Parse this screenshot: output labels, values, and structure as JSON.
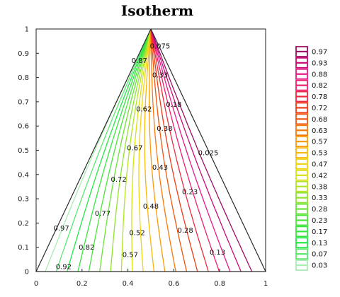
{
  "chart_data": {
    "type": "contour",
    "title": "Isotherm",
    "xlim": [
      0,
      1
    ],
    "ylim": [
      0,
      1
    ],
    "x_ticks": [
      "0",
      "0.2",
      "0.4",
      "0.6",
      "0.8",
      "1"
    ],
    "y_ticks": [
      "0",
      "0.1",
      "0.2",
      "0.3",
      "0.4",
      "0.5",
      "0.6",
      "0.7",
      "0.8",
      "0.9",
      "1"
    ],
    "domain_triangle": [
      [
        0,
        0
      ],
      [
        1,
        0
      ],
      [
        0.5,
        1
      ]
    ],
    "contour_levels": [
      "0.97",
      "0.93",
      "0.88",
      "0.82",
      "0.78",
      "0.72",
      "0.68",
      "0.63",
      "0.57",
      "0.53",
      "0.47",
      "0.42",
      "0.38",
      "0.33",
      "0.28",
      "0.23",
      "0.17",
      "0.13",
      "0.07",
      "0.03"
    ],
    "level_colors": [
      "#9e0e64",
      "#cc0a78",
      "#e8188a",
      "#f01e6e",
      "#f02a3e",
      "#f03a14",
      "#f2560c",
      "#f5780a",
      "#f89a0a",
      "#f8b80e",
      "#f2d214",
      "#d8e01a",
      "#b2e424",
      "#8ee42c",
      "#68e434",
      "#48e63a",
      "#34e640",
      "#22e846",
      "#5ae86e",
      "#a8eeb0"
    ],
    "contour_labels": [
      {
        "text": "0.075",
        "x": 0.54,
        "y": 0.93
      },
      {
        "text": "0.87",
        "x": 0.45,
        "y": 0.87
      },
      {
        "text": "0.33",
        "x": 0.54,
        "y": 0.81
      },
      {
        "text": "0.18",
        "x": 0.6,
        "y": 0.69
      },
      {
        "text": "0.62",
        "x": 0.47,
        "y": 0.67
      },
      {
        "text": "0.38",
        "x": 0.56,
        "y": 0.59
      },
      {
        "text": "0.67",
        "x": 0.43,
        "y": 0.51
      },
      {
        "text": "0.025",
        "x": 0.75,
        "y": 0.49
      },
      {
        "text": "0.43",
        "x": 0.54,
        "y": 0.43
      },
      {
        "text": "0.72",
        "x": 0.36,
        "y": 0.38
      },
      {
        "text": "0.23",
        "x": 0.67,
        "y": 0.33
      },
      {
        "text": "0.48",
        "x": 0.5,
        "y": 0.27
      },
      {
        "text": "0.77",
        "x": 0.29,
        "y": 0.24
      },
      {
        "text": "0.97",
        "x": 0.11,
        "y": 0.18
      },
      {
        "text": "0.52",
        "x": 0.44,
        "y": 0.16
      },
      {
        "text": "0.28",
        "x": 0.65,
        "y": 0.17
      },
      {
        "text": "0.82",
        "x": 0.22,
        "y": 0.1
      },
      {
        "text": "0.57",
        "x": 0.41,
        "y": 0.07
      },
      {
        "text": "0.13",
        "x": 0.79,
        "y": 0.08
      },
      {
        "text": "0.92",
        "x": 0.12,
        "y": 0.02
      }
    ]
  }
}
